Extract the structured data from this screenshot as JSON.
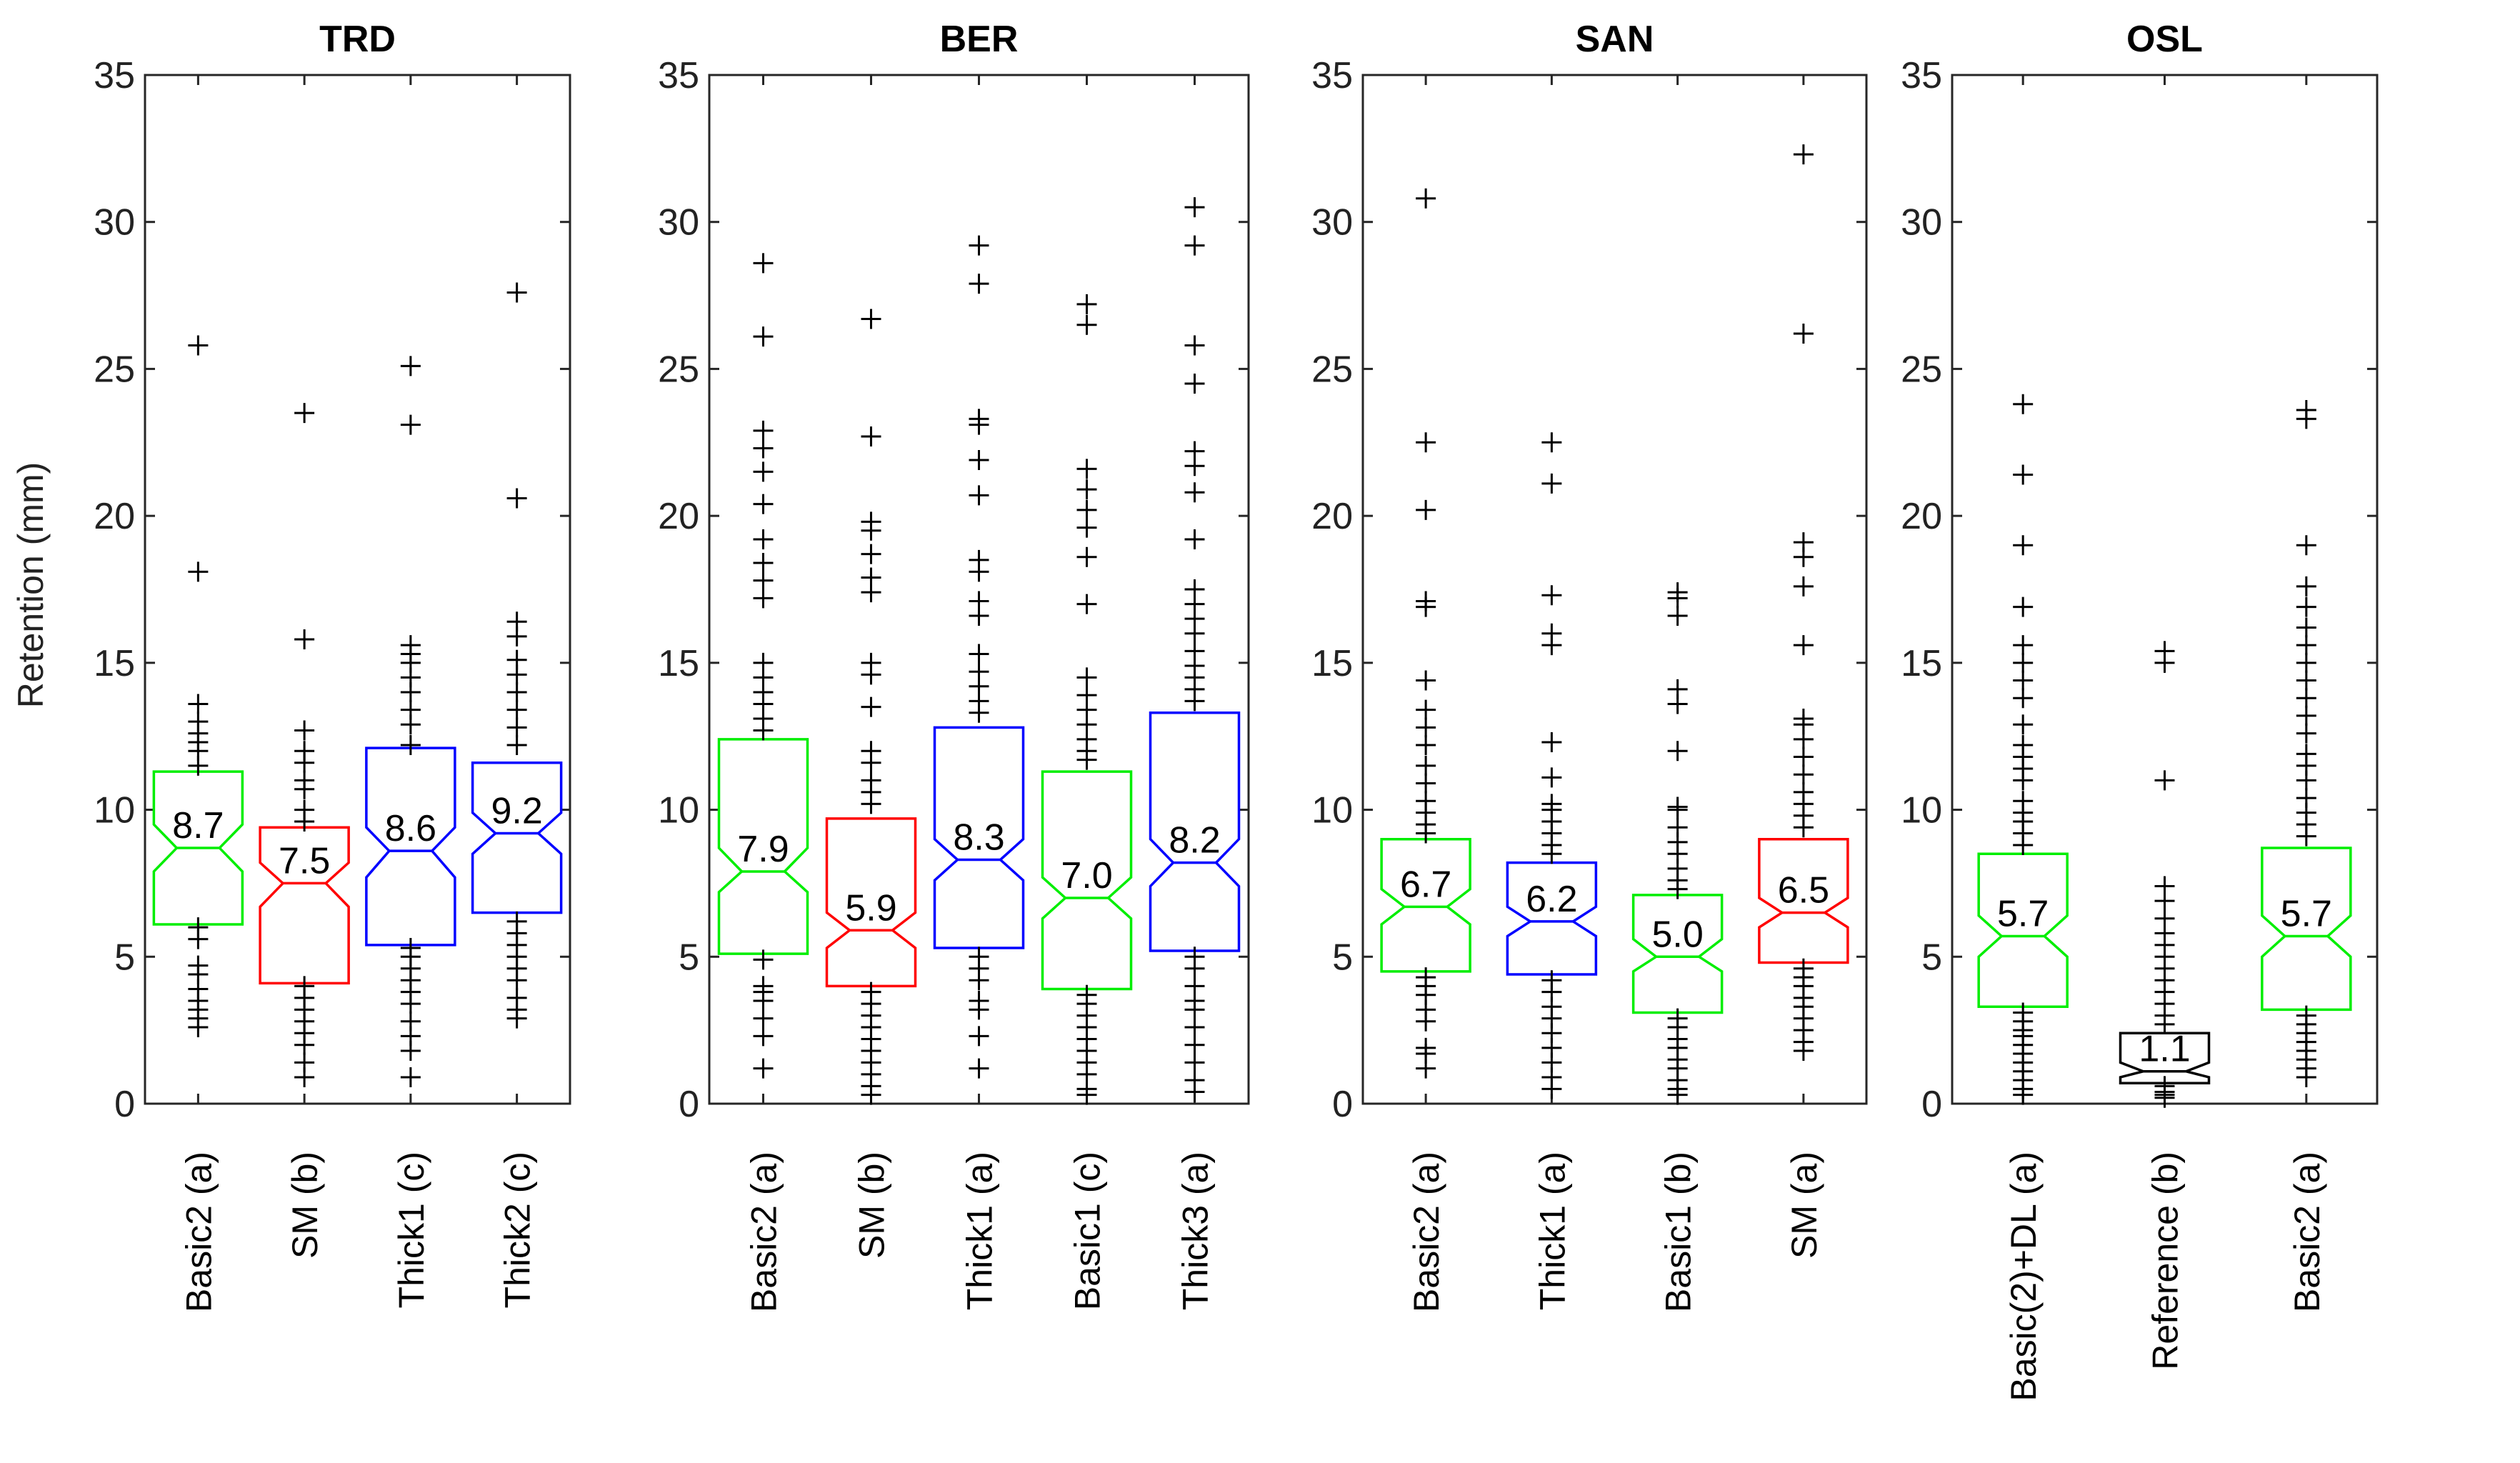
{
  "chart_data": {
    "type": "box",
    "ylabel": "Retention (mm)",
    "ylim": [
      0,
      35
    ],
    "yticks": [
      "0",
      "5",
      "10",
      "15",
      "20",
      "25",
      "30",
      "35"
    ],
    "colors": {
      "green": "#00ee00",
      "red": "#ff0000",
      "blue": "#0000ff",
      "black": "#000000"
    },
    "panels": [
      {
        "title": "TRD",
        "boxes": [
          {
            "label": "Basic2 (a)",
            "color": "green",
            "median": 8.7,
            "median_label": "8.7",
            "q1": 6.1,
            "q3": 11.3,
            "notch": [
              7.9,
              9.5
            ],
            "whisker_low": 6.1,
            "whisker_high": 11.3,
            "outliers": [
              25.8,
              18.1,
              13.6,
              13.0,
              12.6,
              12.3,
              12.0,
              11.5,
              6.0,
              5.6,
              4.7,
              4.4,
              3.9,
              3.5,
              3.2,
              2.9,
              2.6
            ]
          },
          {
            "label": "SM (b)",
            "color": "red",
            "median": 7.5,
            "median_label": "7.5",
            "q1": 4.1,
            "q3": 9.4,
            "notch": [
              6.7,
              8.2
            ],
            "whisker_low": 4.1,
            "whisker_high": 9.4,
            "outliers": [
              23.5,
              15.8,
              12.7,
              12.0,
              11.6,
              11.0,
              10.7,
              10.0,
              9.6,
              4.0,
              3.6,
              3.2,
              2.8,
              2.4,
              2.0,
              1.4,
              0.9
            ]
          },
          {
            "label": "Thick1 (c)",
            "color": "blue",
            "median": 8.6,
            "median_label": "8.6",
            "q1": 5.4,
            "q3": 12.1,
            "notch": [
              7.7,
              9.4
            ],
            "whisker_low": 5.4,
            "whisker_high": 12.1,
            "outliers": [
              25.1,
              23.1,
              15.6,
              15.3,
              15.0,
              14.5,
              14.0,
              13.4,
              12.9,
              12.2,
              5.3,
              5.0,
              4.6,
              4.2,
              3.8,
              3.4,
              2.8,
              2.3,
              1.8,
              0.9
            ]
          },
          {
            "label": "Thick2 (c)",
            "color": "blue",
            "median": 9.2,
            "median_label": "9.2",
            "q1": 6.5,
            "q3": 11.6,
            "notch": [
              8.5,
              9.9
            ],
            "whisker_low": 6.5,
            "whisker_high": 11.6,
            "outliers": [
              27.6,
              20.6,
              16.4,
              15.9,
              15.1,
              14.6,
              14.0,
              13.4,
              12.8,
              12.2,
              6.2,
              5.8,
              5.4,
              5.0,
              4.6,
              4.2,
              3.6,
              3.2,
              2.9
            ]
          }
        ]
      },
      {
        "title": "BER",
        "boxes": [
          {
            "label": "Basic2 (a)",
            "color": "green",
            "median": 7.9,
            "median_label": "7.9",
            "q1": 5.1,
            "q3": 12.4,
            "notch": [
              7.2,
              8.7
            ],
            "whisker_low": 5.1,
            "whisker_high": 12.4,
            "outliers": [
              28.6,
              26.1,
              22.9,
              22.3,
              21.5,
              20.4,
              19.2,
              18.4,
              17.8,
              17.2,
              15.0,
              14.5,
              14.0,
              13.6,
              13.1,
              12.7,
              4.9,
              4.0,
              3.8,
              3.5,
              2.9,
              2.3,
              1.2
            ]
          },
          {
            "label": "SM (b)",
            "color": "red",
            "median": 5.9,
            "median_label": "5.9",
            "q1": 4.0,
            "q3": 9.7,
            "notch": [
              5.3,
              6.5
            ],
            "whisker_low": 4.0,
            "whisker_high": 9.7,
            "outliers": [
              26.7,
              22.7,
              19.8,
              19.5,
              18.7,
              17.9,
              17.4,
              15.0,
              14.6,
              13.5,
              12.0,
              11.6,
              11.0,
              10.6,
              10.2,
              3.8,
              3.4,
              3.0,
              2.6,
              2.2,
              1.8,
              1.4,
              1.0,
              0.6,
              0.3
            ]
          },
          {
            "label": "Thick1 (a)",
            "color": "blue",
            "median": 8.3,
            "median_label": "8.3",
            "q1": 5.3,
            "q3": 12.8,
            "notch": [
              7.6,
              9.0
            ],
            "whisker_low": 5.3,
            "whisker_high": 12.8,
            "outliers": [
              29.2,
              27.9,
              23.3,
              23.1,
              21.9,
              20.7,
              18.5,
              18.1,
              17.1,
              16.6,
              15.3,
              14.7,
              14.2,
              13.7,
              13.3,
              5.0,
              4.6,
              4.2,
              3.5,
              3.2,
              2.3,
              1.2
            ]
          },
          {
            "label": "Basic1 (c)",
            "color": "green",
            "median": 7.0,
            "median_label": "7.0",
            "q1": 3.9,
            "q3": 11.3,
            "notch": [
              6.3,
              7.7
            ],
            "whisker_low": 3.9,
            "whisker_high": 11.3,
            "outliers": [
              27.2,
              26.5,
              21.6,
              20.9,
              20.2,
              19.6,
              18.6,
              17.0,
              14.5,
              13.9,
              13.4,
              12.9,
              12.4,
              12.0,
              11.7,
              3.7,
              3.4,
              3.0,
              2.6,
              2.2,
              1.8,
              1.4,
              1.0,
              0.5,
              0.3
            ]
          },
          {
            "label": "Thick3 (a)",
            "color": "blue",
            "median": 8.2,
            "median_label": "8.2",
            "q1": 5.2,
            "q3": 13.3,
            "notch": [
              7.4,
              9.0
            ],
            "whisker_low": 5.2,
            "whisker_high": 13.3,
            "outliers": [
              30.5,
              29.2,
              25.8,
              24.5,
              22.2,
              21.7,
              20.8,
              19.2,
              17.5,
              17.0,
              16.5,
              16.0,
              15.4,
              14.9,
              14.5,
              14.1,
              13.7,
              5.0,
              4.6,
              4.0,
              3.5,
              3.2,
              2.6,
              2.0,
              1.4,
              0.8,
              0.4
            ]
          }
        ]
      },
      {
        "title": "SAN",
        "boxes": [
          {
            "label": "Basic2 (a)",
            "color": "green",
            "median": 6.7,
            "median_label": "6.7",
            "q1": 4.5,
            "q3": 9.0,
            "notch": [
              6.1,
              7.3
            ],
            "whisker_low": 4.5,
            "whisker_high": 9.0,
            "outliers": [
              30.8,
              22.5,
              20.2,
              17.1,
              16.9,
              14.4,
              13.4,
              12.8,
              12.2,
              11.5,
              10.9,
              10.3,
              9.9,
              9.5,
              9.2,
              4.3,
              4.0,
              3.7,
              3.2,
              2.8,
              1.9,
              1.7,
              1.2
            ]
          },
          {
            "label": "Thick1 (a)",
            "color": "blue",
            "median": 6.2,
            "median_label": "6.2",
            "q1": 4.4,
            "q3": 8.2,
            "notch": [
              5.7,
              6.7
            ],
            "whisker_low": 4.4,
            "whisker_high": 8.2,
            "outliers": [
              22.5,
              21.1,
              17.3,
              16.0,
              15.6,
              12.3,
              11.1,
              10.2,
              10.0,
              9.6,
              9.2,
              8.8,
              8.5,
              4.2,
              3.8,
              3.3,
              2.9,
              2.4,
              1.9,
              1.4,
              0.9,
              0.5
            ]
          },
          {
            "label": "Basic1 (b)",
            "color": "green",
            "median": 5.0,
            "median_label": "5.0",
            "q1": 3.1,
            "q3": 7.1,
            "notch": [
              4.5,
              5.6
            ],
            "whisker_low": 3.1,
            "whisker_high": 7.1,
            "outliers": [
              17.4,
              17.2,
              16.6,
              14.1,
              13.6,
              12.0,
              10.1,
              10.0,
              9.4,
              8.9,
              8.5,
              8.0,
              7.6,
              7.3,
              2.9,
              2.6,
              2.2,
              1.9,
              1.5,
              1.2,
              0.8,
              0.5,
              0.3
            ]
          },
          {
            "label": "SM (a)",
            "color": "red",
            "median": 6.5,
            "median_label": "6.5",
            "q1": 4.8,
            "q3": 9.0,
            "notch": [
              6.0,
              7.0
            ],
            "whisker_low": 4.8,
            "whisker_high": 9.0,
            "outliers": [
              32.3,
              26.2,
              19.1,
              18.6,
              17.6,
              15.6,
              13.1,
              12.9,
              12.4,
              11.8,
              11.2,
              10.6,
              10.2,
              9.8,
              9.4,
              4.6,
              4.3,
              4.0,
              3.6,
              3.3,
              2.9,
              2.5,
              2.1,
              1.8
            ]
          }
        ]
      },
      {
        "title": "OSL",
        "boxes": [
          {
            "label": "Basic(2)+DL (a)",
            "color": "green",
            "median": 5.7,
            "median_label": "5.7",
            "q1": 3.3,
            "q3": 8.5,
            "notch": [
              5.0,
              6.4
            ],
            "whisker_low": 3.3,
            "whisker_high": 8.5,
            "outliers": [
              23.8,
              21.4,
              19.0,
              16.9,
              15.6,
              15.0,
              14.4,
              13.8,
              12.9,
              12.2,
              11.8,
              11.4,
              11.0,
              10.3,
              9.9,
              9.6,
              9.2,
              8.8,
              3.1,
              2.8,
              2.5,
              2.3,
              2.0,
              1.7,
              1.4,
              1.1,
              0.8,
              0.5,
              0.3
            ]
          },
          {
            "label": "Reference (b)",
            "color": "black",
            "median": 1.1,
            "median_label": "1.1",
            "q1": 0.7,
            "q3": 2.4,
            "notch": [
              0.9,
              1.4
            ],
            "whisker_low": 0.7,
            "whisker_high": 2.4,
            "outliers": [
              15.4,
              15.0,
              11.0,
              7.4,
              6.9,
              6.3,
              5.8,
              5.4,
              5.0,
              4.6,
              4.2,
              3.8,
              3.4,
              3.0,
              2.7,
              0.6,
              0.4,
              0.3,
              0.2
            ]
          },
          {
            "label": "Basic2 (a)",
            "color": "green",
            "median": 5.7,
            "median_label": "5.7",
            "q1": 3.2,
            "q3": 8.7,
            "notch": [
              5.0,
              6.4
            ],
            "whisker_low": 3.2,
            "whisker_high": 8.7,
            "outliers": [
              23.6,
              23.3,
              19.0,
              17.6,
              16.9,
              16.2,
              15.6,
              15.0,
              14.4,
              13.8,
              13.2,
              12.6,
              11.9,
              11.5,
              11.0,
              10.4,
              9.9,
              9.5,
              9.1,
              3.0,
              2.7,
              2.4,
              2.1,
              1.8,
              1.5,
              1.2,
              0.9
            ]
          }
        ]
      }
    ]
  }
}
